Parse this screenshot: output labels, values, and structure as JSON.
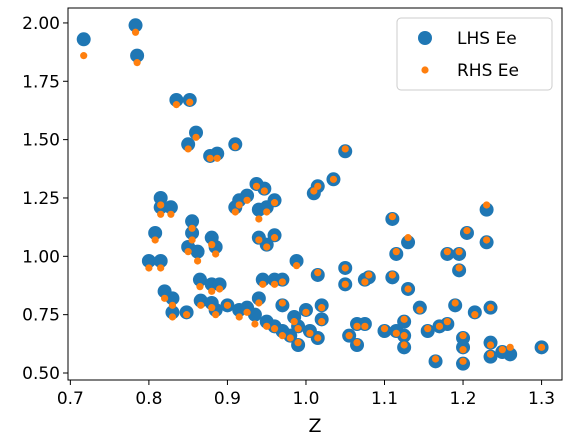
{
  "chart_data": {
    "type": "scatter",
    "x_label": "Z",
    "x": [
      0.717,
      0.783,
      0.785,
      0.835,
      0.852,
      0.86,
      0.85,
      0.878,
      0.887,
      0.91,
      0.815,
      0.815,
      0.828,
      0.808,
      0.8,
      0.815,
      0.82,
      0.83,
      0.83,
      0.848,
      0.855,
      0.855,
      0.85,
      0.862,
      0.865,
      0.866,
      0.88,
      0.885,
      0.88,
      0.89,
      0.88,
      0.885,
      0.9,
      0.91,
      0.915,
      0.925,
      0.937,
      0.947,
      0.94,
      0.95,
      0.96,
      0.94,
      0.95,
      0.96,
      0.945,
      0.96,
      0.97,
      0.94,
      0.915,
      0.925,
      0.935,
      0.95,
      0.96,
      0.97,
      0.98,
      0.99,
      0.97,
      0.985,
      0.99,
      1.0,
      1.005,
      1.015,
      1.02,
      1.02,
      0.988,
      1.015,
      1.01,
      1.015,
      1.035,
      1.05,
      1.05,
      1.05,
      1.055,
      1.065,
      1.065,
      1.075,
      1.075,
      1.08,
      1.11,
      1.115,
      1.13,
      1.13,
      1.11,
      1.1,
      1.115,
      1.125,
      1.125,
      1.125,
      1.145,
      1.155,
      1.165,
      1.17,
      1.18,
      1.18,
      1.19,
      1.195,
      1.195,
      1.2,
      1.2,
      1.2,
      1.205,
      1.215,
      1.23,
      1.23,
      1.235,
      1.235,
      1.235,
      1.25,
      1.26,
      1.3
    ],
    "series": [
      {
        "name": "LHS Ee",
        "color": "#1f77b4",
        "values": [
          1.93,
          1.99,
          1.86,
          1.67,
          1.67,
          1.53,
          1.48,
          1.43,
          1.44,
          1.48,
          1.25,
          1.21,
          1.21,
          1.1,
          0.98,
          0.98,
          0.85,
          0.82,
          0.76,
          0.76,
          1.15,
          1.1,
          1.04,
          1.02,
          0.9,
          0.81,
          1.08,
          1.04,
          0.88,
          0.88,
          0.8,
          0.77,
          0.79,
          1.21,
          1.24,
          1.26,
          1.31,
          1.29,
          1.2,
          1.21,
          1.24,
          1.08,
          1.05,
          1.09,
          0.9,
          0.9,
          0.9,
          0.82,
          0.77,
          0.78,
          0.75,
          0.72,
          0.7,
          0.68,
          0.66,
          0.62,
          0.79,
          0.74,
          0.7,
          0.77,
          0.68,
          0.65,
          0.73,
          0.79,
          0.98,
          0.92,
          1.27,
          1.3,
          1.33,
          1.45,
          0.95,
          0.88,
          0.66,
          0.71,
          0.62,
          0.71,
          0.9,
          0.91,
          1.16,
          1.01,
          1.06,
          0.86,
          0.91,
          0.68,
          0.68,
          0.72,
          0.66,
          0.61,
          0.78,
          0.68,
          0.55,
          0.7,
          0.71,
          1.01,
          0.79,
          0.94,
          1.01,
          0.65,
          0.61,
          0.54,
          1.1,
          0.76,
          1.2,
          1.06,
          0.78,
          0.63,
          0.57,
          0.59,
          0.58,
          0.61
        ]
      },
      {
        "name": "RHS Ee",
        "color": "#ff7f0e",
        "values": [
          1.86,
          1.96,
          1.83,
          1.65,
          1.66,
          1.51,
          1.46,
          1.42,
          1.42,
          1.47,
          1.22,
          1.18,
          1.18,
          1.07,
          0.95,
          0.95,
          0.82,
          0.79,
          0.74,
          0.75,
          1.12,
          1.07,
          1.02,
          0.98,
          0.87,
          0.79,
          1.05,
          1.01,
          0.85,
          0.86,
          0.78,
          0.75,
          0.79,
          1.19,
          1.22,
          1.24,
          1.3,
          1.28,
          1.16,
          1.19,
          1.23,
          1.07,
          1.04,
          1.08,
          0.88,
          0.88,
          0.89,
          0.8,
          0.74,
          0.76,
          0.71,
          0.7,
          0.69,
          0.66,
          0.65,
          0.63,
          0.8,
          0.72,
          0.69,
          0.76,
          0.67,
          0.65,
          0.72,
          0.78,
          0.96,
          0.93,
          1.28,
          1.3,
          1.33,
          1.46,
          0.95,
          0.88,
          0.66,
          0.7,
          0.63,
          0.7,
          0.89,
          0.92,
          1.17,
          1.02,
          1.08,
          0.86,
          0.92,
          0.69,
          0.67,
          0.73,
          0.66,
          0.62,
          0.77,
          0.69,
          0.56,
          0.7,
          0.72,
          1.02,
          0.8,
          0.95,
          1.02,
          0.66,
          0.6,
          0.55,
          1.11,
          0.75,
          1.22,
          1.07,
          0.78,
          0.62,
          0.58,
          0.6,
          0.61,
          0.61
        ]
      }
    ],
    "xlim": [
      0.697,
      1.326
    ],
    "ylim": [
      0.47,
      2.064
    ],
    "xticks": [
      0.7,
      0.8,
      0.9,
      {
        "value": 1.0,
        "label": "1.0"
      },
      1.1,
      1.2,
      1.3
    ],
    "yticks": [
      {
        "value": 0.5,
        "label": "0.50"
      },
      0.75,
      {
        "value": 1.0,
        "label": "1.00"
      },
      1.25,
      {
        "value": 1.5,
        "label": "1.50"
      },
      1.75,
      {
        "value": 2.0,
        "label": "2.00"
      }
    ],
    "legend": "upper right",
    "grid": false
  }
}
